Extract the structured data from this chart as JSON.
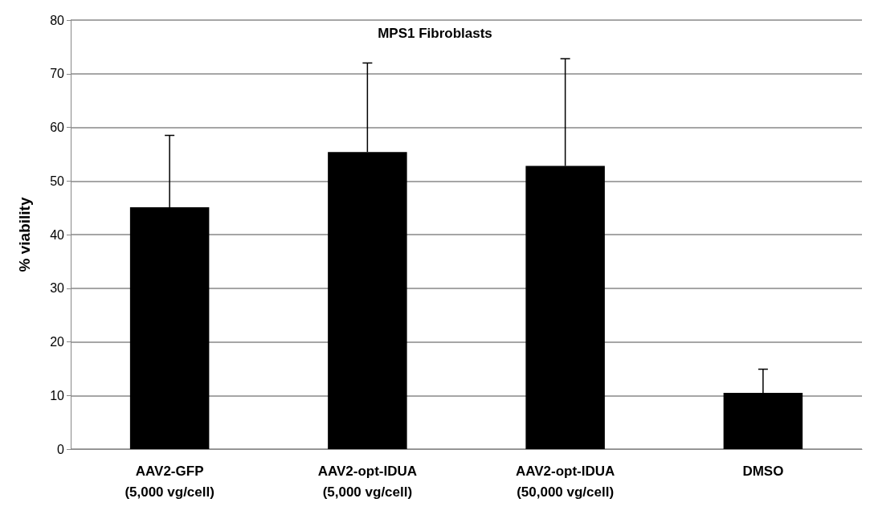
{
  "chart_data": {
    "type": "bar",
    "title": "MPS1 Fibroblasts",
    "ylabel": "% viability",
    "categories": [
      "AAV2-GFP\n(5,000 vg/cell)",
      "AAV2-opt-IDUA\n(5,000 vg/cell)",
      "AAV2-opt-IDUA\n(50,000 vg/cell)",
      "DMSO"
    ],
    "values": [
      45.1,
      55.4,
      52.8,
      10.5
    ],
    "errors": [
      [
        45.1,
        58.5
      ],
      [
        55.4,
        72
      ],
      [
        52.8,
        72.8
      ],
      [
        10.5,
        14.9
      ]
    ],
    "color": "#000000",
    "ylim": [
      0,
      80
    ],
    "yticks": [
      0,
      10,
      20,
      30,
      40,
      50,
      60,
      70,
      80
    ],
    "grid": "y"
  }
}
